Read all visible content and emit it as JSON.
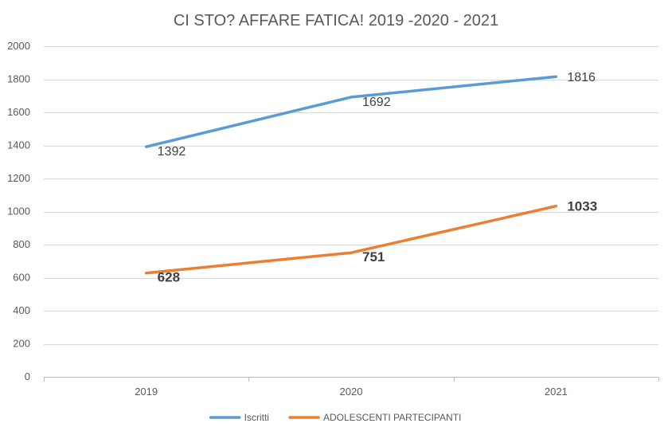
{
  "chart_data": {
    "type": "line",
    "title": "CI STO? AFFARE FATICA! 2019 -2020 - 2021",
    "xlabel": "",
    "ylabel": "",
    "categories": [
      "2019",
      "2020",
      "2021"
    ],
    "ylim": [
      0,
      2000
    ],
    "yticks": [
      0,
      200,
      400,
      600,
      800,
      1000,
      1200,
      1400,
      1600,
      1800,
      2000
    ],
    "grid": true,
    "legend": "bottom",
    "series": [
      {
        "name": "Iscritti",
        "values": [
          1392,
          1692,
          1816
        ],
        "color": "#5b9bd5",
        "labels_bold": false
      },
      {
        "name": "ADOLESCENTI PARTECIPANTI",
        "values": [
          628,
          751,
          1033
        ],
        "color": "#ed7d31",
        "labels_bold": true
      }
    ]
  }
}
